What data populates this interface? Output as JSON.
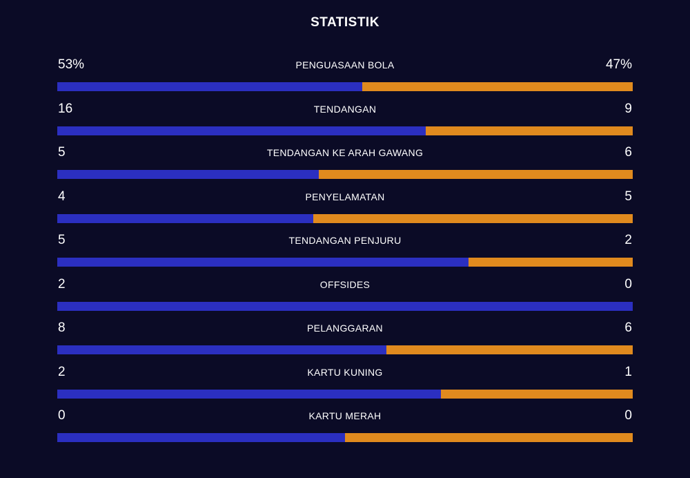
{
  "title": "STATISTIK",
  "colors": {
    "background": "#0b0b26",
    "home": "#2b2fc0",
    "away": "#e08a1e",
    "text": "#ffffff"
  },
  "stats": [
    {
      "label": "PENGUASAAN BOLA",
      "home": "53%",
      "away": "47%",
      "home_share": 0.53
    },
    {
      "label": "TENDANGAN",
      "home": "16",
      "away": "9",
      "home_share": 0.64
    },
    {
      "label": "TENDANGAN KE ARAH GAWANG",
      "home": "5",
      "away": "6",
      "home_share": 0.4545
    },
    {
      "label": "PENYELAMATAN",
      "home": "4",
      "away": "5",
      "home_share": 0.4444
    },
    {
      "label": "TENDANGAN PENJURU",
      "home": "5",
      "away": "2",
      "home_share": 0.7143
    },
    {
      "label": "OFFSIDES",
      "home": "2",
      "away": "0",
      "home_share": 1.0
    },
    {
      "label": "PELANGGARAN",
      "home": "8",
      "away": "6",
      "home_share": 0.5714
    },
    {
      "label": "KARTU KUNING",
      "home": "2",
      "away": "1",
      "home_share": 0.6667
    },
    {
      "label": "KARTU MERAH",
      "home": "0",
      "away": "0",
      "home_share": 0.5
    }
  ]
}
